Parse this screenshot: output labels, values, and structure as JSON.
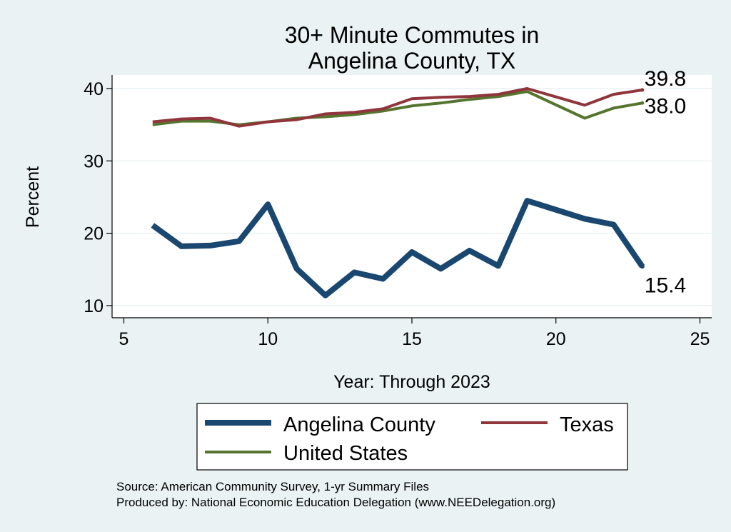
{
  "chart_data": {
    "type": "line",
    "title": [
      "30+ Minute Commutes in",
      "Angelina County, TX"
    ],
    "xlabel": "Year: Through 2023",
    "ylabel": "Percent",
    "xlim": [
      5,
      25
    ],
    "ylim": [
      9,
      41
    ],
    "xticks": [
      5,
      10,
      15,
      20,
      25
    ],
    "yticks": [
      10,
      20,
      30,
      40
    ],
    "grid": true,
    "x": [
      6,
      7,
      8,
      9,
      10,
      11,
      12,
      13,
      14,
      15,
      16,
      17,
      18,
      19,
      21,
      22,
      23
    ],
    "series": [
      {
        "name": "Angelina County",
        "color": "#1a476f",
        "values": [
          21.1,
          18.2,
          18.3,
          18.9,
          24.0,
          15.1,
          11.4,
          14.6,
          13.7,
          17.4,
          15.1,
          17.6,
          15.5,
          24.5,
          22.0,
          21.2,
          15.4
        ],
        "end_label": "15.4"
      },
      {
        "name": "Texas",
        "color": "#90353b",
        "values": [
          35.4,
          35.8,
          35.9,
          34.8,
          35.4,
          35.7,
          36.5,
          36.7,
          37.2,
          38.6,
          38.8,
          38.9,
          39.2,
          40.0,
          37.7,
          39.2,
          39.8
        ],
        "end_label": "39.8"
      },
      {
        "name": "United States",
        "color": "#55752f",
        "values": [
          35.0,
          35.5,
          35.5,
          35.0,
          35.4,
          35.9,
          36.1,
          36.4,
          36.9,
          37.6,
          38.0,
          38.5,
          38.9,
          39.6,
          35.9,
          37.3,
          38.0
        ],
        "end_label": "38.0"
      }
    ],
    "legend": {
      "position": "bottom",
      "entries": [
        "Angelina County",
        "Texas",
        "United States"
      ]
    },
    "notes": [
      "Source: American Community Survey, 1-yr Summary Files",
      "Produced by: National Economic Education Delegation (www.NEEDelegation.org)"
    ]
  },
  "colors": {
    "background": "#eaf2f3",
    "plot_background": "#ffffff",
    "grid": "#eaf2f3"
  }
}
